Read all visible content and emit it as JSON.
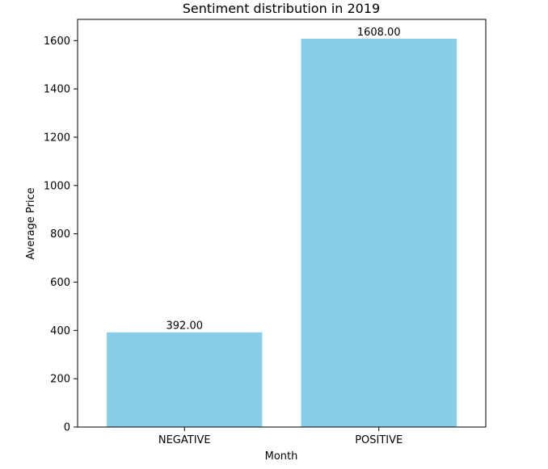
{
  "chart_data": {
    "type": "bar",
    "title": "Sentiment distribution in 2019",
    "xlabel": "Month",
    "ylabel": "Average Price",
    "categories": [
      "NEGATIVE",
      "POSITIVE"
    ],
    "values": [
      392.0,
      1608.0
    ],
    "data_labels": [
      "392.00",
      "1608.00"
    ],
    "ylim": [
      0,
      1688
    ],
    "yticks": [
      0,
      200,
      400,
      600,
      800,
      1000,
      1200,
      1400,
      1600
    ],
    "bar_color": "#87CEEB",
    "grid": false,
    "legend": "none"
  }
}
